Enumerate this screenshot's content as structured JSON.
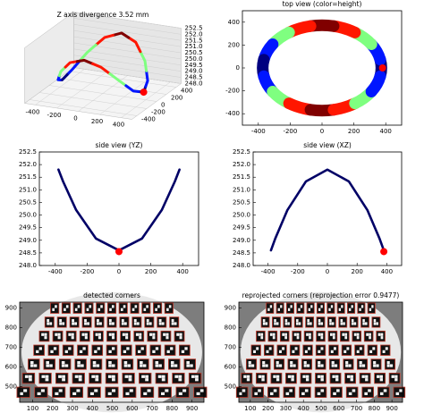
{
  "chart_data": [
    {
      "type": "line3d",
      "title": "Z axis divergence 3.52 mm",
      "x": [
        380,
        351,
        269,
        145,
        0,
        -145,
        -269,
        -351,
        -380,
        -351,
        -269,
        -145,
        0,
        145,
        269,
        351
      ],
      "y": [
        0,
        145,
        269,
        351,
        380,
        351,
        269,
        145,
        0,
        -145,
        -269,
        -351,
        -380,
        -351,
        -269,
        -145
      ],
      "z": [
        248.6,
        249.07,
        250.2,
        251.33,
        251.8,
        251.33,
        250.2,
        249.07,
        248.6,
        249.07,
        250.2,
        251.33,
        251.8,
        251.33,
        250.2,
        249.07
      ],
      "colormap": "jet",
      "marker": {
        "x": 380,
        "y": 0,
        "z": 248.6,
        "color": "#ff0000"
      },
      "xlim": [
        -500,
        500
      ],
      "ylim": [
        -500,
        500
      ],
      "zlim": [
        248,
        252.5
      ],
      "xticks": [
        -400,
        -200,
        0,
        200,
        400
      ],
      "yticks": [
        -400,
        -200,
        0,
        200,
        400
      ],
      "zticks": [
        {
          "value": 248,
          "label": "248.0"
        },
        {
          "value": 248.5,
          "label": "248.5"
        },
        {
          "value": 249,
          "label": "249.0"
        },
        {
          "value": 249.5,
          "label": "249.5"
        },
        {
          "value": 250,
          "label": "250.0"
        },
        {
          "value": 250.5,
          "label": "250.5"
        },
        {
          "value": 251,
          "label": "251.0"
        },
        {
          "value": 251.5,
          "label": "251.5"
        },
        {
          "value": 252,
          "label": "252.0"
        },
        {
          "value": 252.5,
          "label": "252.5"
        }
      ]
    },
    {
      "type": "ring",
      "title": "top view (color=height)",
      "x": [
        380,
        351,
        269,
        145,
        0,
        -145,
        -269,
        -351,
        -380,
        -351,
        -269,
        -145,
        0,
        145,
        269,
        351
      ],
      "y": [
        0,
        145,
        269,
        351,
        380,
        351,
        269,
        145,
        0,
        -145,
        -269,
        -351,
        -380,
        -351,
        -269,
        -145
      ],
      "c": [
        248.6,
        249.07,
        250.2,
        251.33,
        251.8,
        251.33,
        250.2,
        249.07,
        248.6,
        249.07,
        250.2,
        251.33,
        251.8,
        251.33,
        250.2,
        249.07
      ],
      "colormap": "jet",
      "marker": {
        "x": 380,
        "y": 0,
        "color": "#ff0000"
      },
      "xlim": [
        -500,
        500
      ],
      "ylim": [
        -500,
        500
      ],
      "xticks": [
        -400,
        -200,
        0,
        200,
        400
      ],
      "yticks": [
        -400,
        -200,
        0,
        200,
        400
      ]
    },
    {
      "type": "loop",
      "title": "side view (YZ)",
      "color": "#000066",
      "x": [
        0,
        145,
        269,
        351,
        380,
        351,
        269,
        145,
        0,
        -145,
        -269,
        -351,
        -380,
        -351,
        -269,
        -145
      ],
      "y": [
        248.6,
        249.07,
        250.2,
        251.33,
        251.8,
        251.33,
        250.2,
        249.07,
        248.6,
        249.07,
        250.2,
        251.33,
        251.8,
        251.33,
        250.2,
        249.07
      ],
      "marker": {
        "x": 0,
        "y": 248.55,
        "color": "#ff0000"
      },
      "xlim": [
        -500,
        500
      ],
      "ylim": [
        248,
        252.5
      ],
      "xticks": [
        -400,
        -200,
        0,
        200,
        400
      ],
      "yticks": [
        {
          "value": 248,
          "label": "248.0"
        },
        {
          "value": 248.5,
          "label": "248.5"
        },
        {
          "value": 249,
          "label": "249.0"
        },
        {
          "value": 249.5,
          "label": "249.5"
        },
        {
          "value": 250,
          "label": "250.0"
        },
        {
          "value": 250.5,
          "label": "250.5"
        },
        {
          "value": 251,
          "label": "251.0"
        },
        {
          "value": 251.5,
          "label": "251.5"
        },
        {
          "value": 252,
          "label": "252.0"
        },
        {
          "value": 252.5,
          "label": "252.5"
        }
      ]
    },
    {
      "type": "loop",
      "title": "side view (XZ)",
      "color": "#000066",
      "x": [
        380,
        351,
        269,
        145,
        0,
        -145,
        -269,
        -351,
        -380,
        -351,
        -269,
        -145,
        0,
        145,
        269,
        351
      ],
      "y": [
        248.6,
        249.07,
        250.2,
        251.33,
        251.8,
        251.33,
        250.2,
        249.07,
        248.6,
        249.07,
        250.2,
        251.33,
        251.8,
        251.33,
        250.2,
        249.07
      ],
      "marker": {
        "x": 380,
        "y": 248.55,
        "color": "#ff0000"
      },
      "xlim": [
        -500,
        500
      ],
      "ylim": [
        248,
        252.5
      ],
      "xticks": [
        -400,
        -200,
        0,
        200,
        400
      ],
      "yticks": [
        {
          "value": 248,
          "label": "248.0"
        },
        {
          "value": 248.5,
          "label": "248.5"
        },
        {
          "value": 249,
          "label": "249.0"
        },
        {
          "value": 249.5,
          "label": "249.5"
        },
        {
          "value": 250,
          "label": "250.0"
        },
        {
          "value": 250.5,
          "label": "250.5"
        },
        {
          "value": 251,
          "label": "251.0"
        },
        {
          "value": 251.5,
          "label": "251.5"
        },
        {
          "value": 252,
          "label": "252.0"
        },
        {
          "value": 252.5,
          "label": "252.5"
        }
      ]
    },
    {
      "type": "image",
      "title": "detected corners",
      "xlim": [
        35,
        960
      ],
      "ylim": [
        420,
        930
      ],
      "xticks": [
        100,
        200,
        300,
        400,
        500,
        600,
        700,
        800,
        900
      ],
      "yticks": [
        500,
        600,
        700,
        800,
        900
      ]
    },
    {
      "type": "image",
      "title": "reprojected corners (reprojection error 0.9477)",
      "xlim": [
        35,
        960
      ],
      "ylim": [
        420,
        930
      ],
      "xticks": [
        100,
        200,
        300,
        400,
        500,
        600,
        700,
        800,
        900
      ],
      "yticks": [
        500,
        600,
        700,
        800,
        900
      ]
    }
  ]
}
